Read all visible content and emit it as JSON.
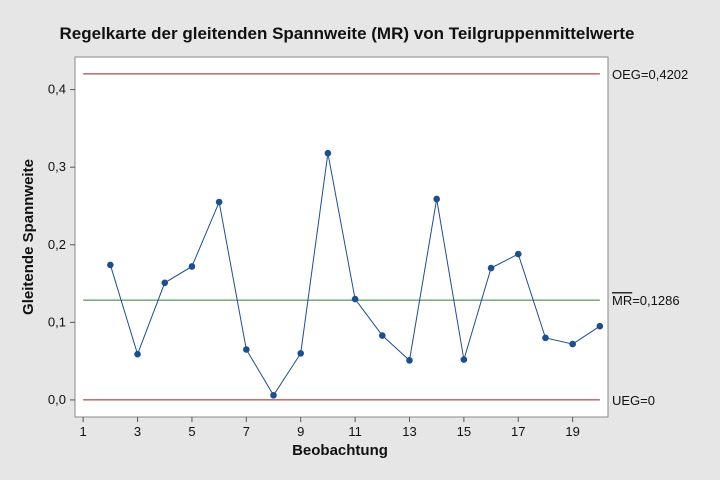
{
  "chart_data": {
    "type": "line",
    "title": "Regelkarte der gleitenden Spannweite (MR) von Teilgruppenmittelwerte",
    "xlabel": "Beobachtung",
    "ylabel": "Gleitende Spannweite",
    "xlim": [
      0.7,
      20.3
    ],
    "ylim": [
      -0.022,
      0.442
    ],
    "x_ticks": [
      1,
      3,
      5,
      7,
      9,
      11,
      13,
      15,
      17,
      19
    ],
    "x_tick_labels": [
      "1",
      "3",
      "5",
      "7",
      "9",
      "11",
      "13",
      "15",
      "17",
      "19"
    ],
    "y_ticks": [
      0.0,
      0.1,
      0.2,
      0.3,
      0.4
    ],
    "y_tick_labels": [
      "0,0",
      "0,1",
      "0,2",
      "0,3",
      "0,4"
    ],
    "grid": false,
    "series": [
      {
        "x": [
          2,
          3,
          4,
          5,
          6,
          7,
          8,
          9,
          10,
          11,
          12,
          13,
          14,
          15,
          16,
          17,
          18,
          19,
          20
        ],
        "values": [
          0.174,
          0.059,
          0.151,
          0.172,
          0.255,
          0.065,
          0.006,
          0.06,
          0.318,
          0.13,
          0.083,
          0.051,
          0.259,
          0.052,
          0.17,
          0.188,
          0.08,
          0.072,
          0.095
        ],
        "color": "#1f4e8c"
      }
    ],
    "reference_lines": [
      {
        "value": 0.4202,
        "prefix": "OEG",
        "value_label": "0,4202",
        "color": "#9b1c1c"
      },
      {
        "value": 0.1286,
        "prefix": "MR",
        "overline": true,
        "value_label": "0,1286",
        "color": "#2e7d32"
      },
      {
        "value": 0,
        "prefix": "UEG",
        "value_label": "0",
        "color": "#9b1c1c"
      }
    ]
  }
}
